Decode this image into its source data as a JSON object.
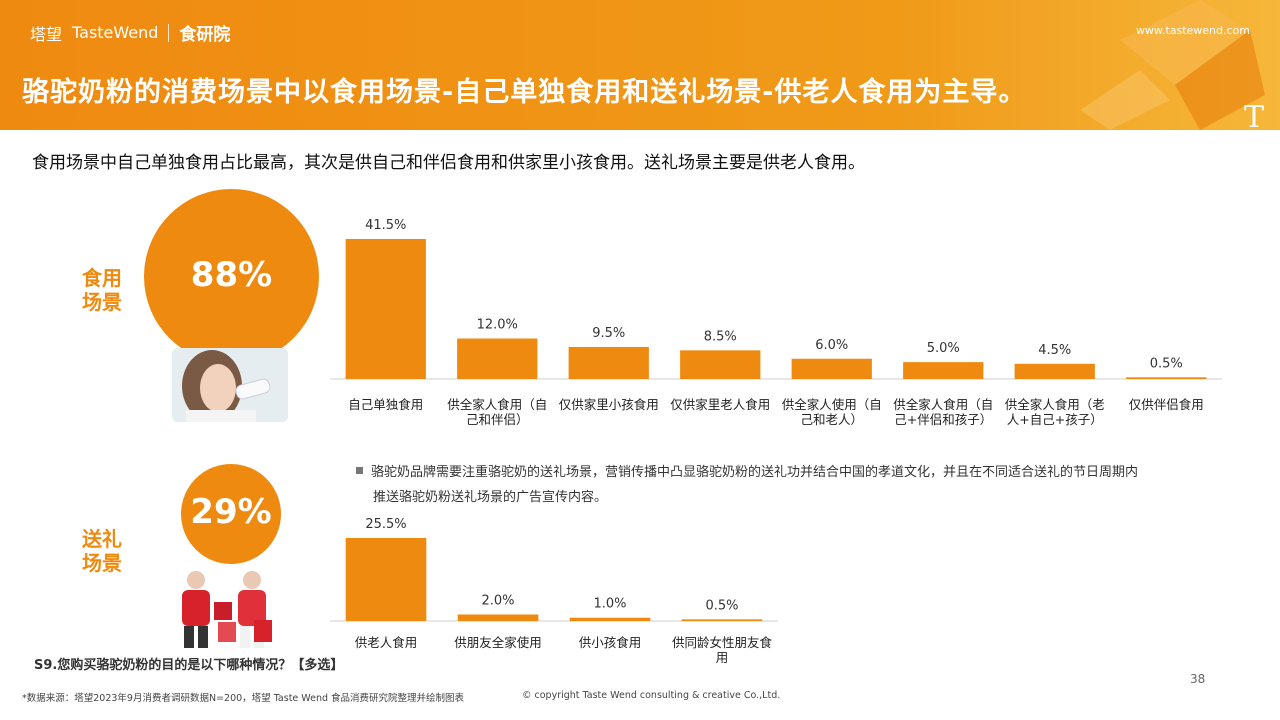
{
  "header": {
    "brand_cn": "塔望",
    "brand_en": "TasteWend",
    "brand_sub": "食研院",
    "site": "www.tastewend.com",
    "title": "骆驼奶粉的消费场景中以食用场景-自己单独食用和送礼场景-供老人食用为主导。",
    "deco_letter": "T"
  },
  "subtitle": "食用场景中自己单独食用占比最高，其次是供自己和伴侣食用和供家里小孩食用。送礼场景主要是供老人食用。",
  "food_scene": {
    "label_line1": "食用",
    "label_line2": "场景",
    "percent": "88%"
  },
  "gift_scene": {
    "label_line1": "送礼",
    "label_line2": "场景",
    "percent": "29%"
  },
  "note": {
    "line1": "骆驼奶品牌需要注重骆驼奶的送礼场景，营销传播中凸显骆驼奶粉的送礼功并结合中国的孝道文化，并且在不同适合送礼的节日周期内",
    "line2": "推送骆驼奶粉送礼场景的广告宣传内容。"
  },
  "chart_data": [
    {
      "type": "bar",
      "categories": [
        [
          "自己单独食用"
        ],
        [
          "供全家人食用（自",
          "己和伴侣）"
        ],
        [
          "仅供家里小孩食用"
        ],
        [
          "仅供家里老人食用"
        ],
        [
          "供全家人使用（自",
          "己和老人）"
        ],
        [
          "供全家人食用（自",
          "己+伴侣和孩子）"
        ],
        [
          "供全家人食用（老",
          "人+自己+孩子）"
        ],
        [
          "仅供伴侣食用"
        ]
      ],
      "values": [
        41.5,
        12.0,
        9.5,
        8.5,
        6.0,
        5.0,
        4.5,
        0.5
      ],
      "value_labels": [
        "41.5%",
        "12.0%",
        "9.5%",
        "8.5%",
        "6.0%",
        "5.0%",
        "4.5%",
        "0.5%"
      ],
      "ylim": [
        0,
        45
      ],
      "grid": false
    },
    {
      "type": "bar",
      "categories": [
        [
          "供老人食用"
        ],
        [
          "供朋友全家使用"
        ],
        [
          "供小孩食用"
        ],
        [
          "供同龄女性朋友食",
          "用"
        ]
      ],
      "values": [
        25.5,
        2.0,
        1.0,
        0.5
      ],
      "value_labels": [
        "25.5%",
        "2.0%",
        "1.0%",
        "0.5%"
      ],
      "ylim": [
        0,
        28
      ],
      "grid": false
    }
  ],
  "colors": {
    "accent": "#ef8a10"
  },
  "question": "S9.您购买骆驼奶粉的目的是以下哪种情况？【多选】",
  "source": "*数据来源：塔望2023年9月消费者调研数据N=200，塔望 Taste Wend 食品消费研究院整理并绘制图表",
  "copyright": "© copyright Taste Wend consulting & creative Co.,Ltd.",
  "page_number": "38"
}
